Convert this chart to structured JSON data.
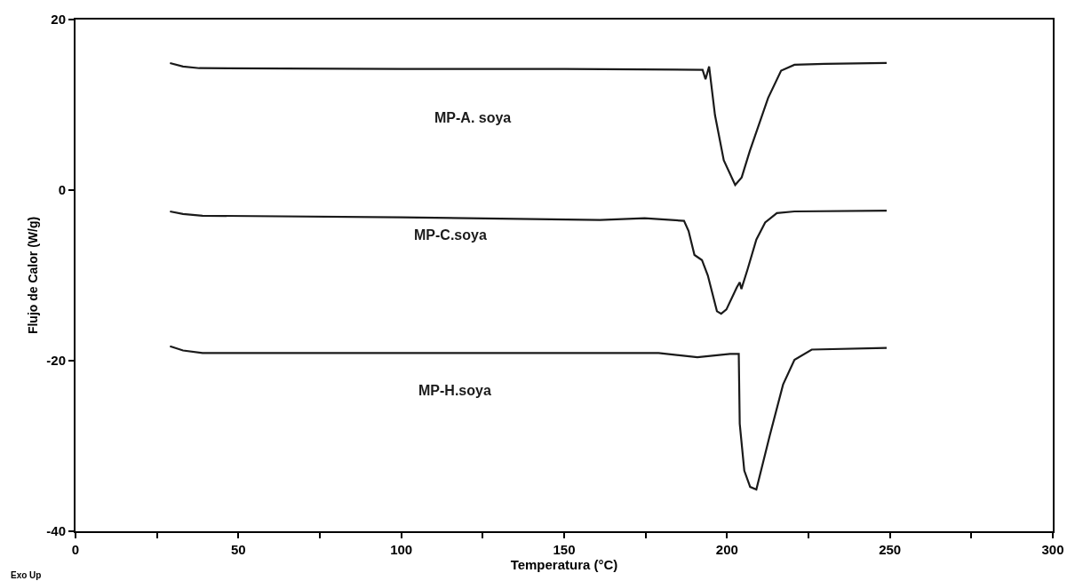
{
  "chart_data": {
    "type": "line",
    "xlabel": "Temperatura (°C)",
    "ylabel": "Flujo de Calor (W/g)",
    "xlim": [
      0,
      300
    ],
    "xticks": [
      0,
      {
        "value": 25,
        "label": null
      },
      50,
      {
        "value": 75,
        "label": null
      },
      100,
      {
        "value": 125,
        "label": null
      },
      150,
      {
        "value": 175,
        "label": null
      },
      200,
      {
        "value": 225,
        "label": null
      },
      250,
      {
        "value": 275,
        "label": null
      },
      300
    ],
    "ylim": [
      -40,
      20
    ],
    "yticks": [
      -40,
      -20,
      0,
      20
    ],
    "legend": false,
    "marker": "none",
    "line_style": "solid",
    "series": [
      {
        "name": "MP-A. soya",
        "color": "#1a1a1a",
        "x": [
          29,
          33,
          38,
          100,
          150,
          192.5,
          193.4,
          194.5,
          196.3,
          199,
          202.5,
          204.5,
          207,
          212.6,
          216.6,
          220.7,
          230,
          249
        ],
        "values": [
          14.9,
          14.5,
          14.3,
          14.2,
          14.2,
          14.1,
          13,
          14.5,
          8.8,
          3.5,
          0.6,
          1.5,
          4.6,
          10.8,
          14,
          14.7,
          14.8,
          14.9
        ]
      },
      {
        "name": "MP-C.soya",
        "color": "#1a1a1a",
        "x": [
          29,
          33,
          39,
          100,
          161,
          174.7,
          186.8,
          188.2,
          190,
          192.3,
          194.1,
          196.9,
          198.2,
          199.8,
          203,
          203.9,
          204.4,
          206.3,
          209,
          211.7,
          215.3,
          220.7,
          249
        ],
        "values": [
          -2.5,
          -2.8,
          -3.0,
          -3.2,
          -3.5,
          -3.3,
          -3.6,
          -4.8,
          -7.6,
          -8.2,
          -10,
          -14.2,
          -14.5,
          -14,
          -11.4,
          -10.8,
          -11.6,
          -9.3,
          -5.8,
          -3.8,
          -2.7,
          -2.5,
          -2.4
        ]
      },
      {
        "name": "MP-H.soya",
        "color": "#1a1a1a",
        "x": [
          29,
          33,
          39,
          100,
          179,
          190.9,
          200.9,
          203.6,
          203.9,
          205.3,
          207.1,
          209,
          213.1,
          217.2,
          220.7,
          226,
          249
        ],
        "values": [
          -18.3,
          -18.8,
          -19.1,
          -19.1,
          -19.1,
          -19.6,
          -19.2,
          -19.2,
          -27.4,
          -32.9,
          -34.8,
          -35.1,
          -28.8,
          -22.8,
          -19.9,
          -18.7,
          -18.5
        ]
      }
    ],
    "annotations": [
      "Exo Up"
    ]
  }
}
